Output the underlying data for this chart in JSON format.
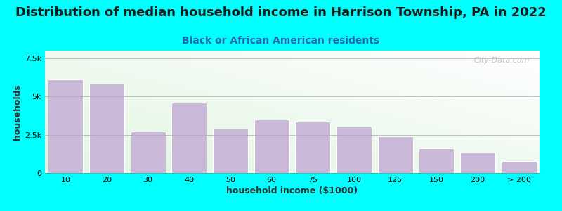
{
  "title": "Distribution of median household income in Harrison Township, PA in 2022",
  "subtitle": "Black or African American residents",
  "xlabel": "household income ($1000)",
  "ylabel": "households",
  "background_color": "#00FFFF",
  "bar_color": "#C9B8D8",
  "bar_edge_color": "#ffffff",
  "categories": [
    "10",
    "20",
    "30",
    "40",
    "50",
    "60",
    "75",
    "100",
    "125",
    "150",
    "200",
    "> 200"
  ],
  "values": [
    6100,
    5850,
    2700,
    4600,
    2900,
    3500,
    3350,
    3050,
    2400,
    1600,
    1350,
    800
  ],
  "ylim": [
    0,
    8000
  ],
  "yticks": [
    0,
    2500,
    5000,
    7500
  ],
  "ytick_labels": [
    "0",
    "2.5k",
    "5k",
    "7.5k"
  ],
  "title_fontsize": 13,
  "subtitle_fontsize": 10,
  "label_fontsize": 9,
  "tick_fontsize": 8,
  "watermark": "City-Data.com",
  "title_color": "#1a1a1a",
  "subtitle_color": "#2266aa",
  "label_color": "#333333"
}
